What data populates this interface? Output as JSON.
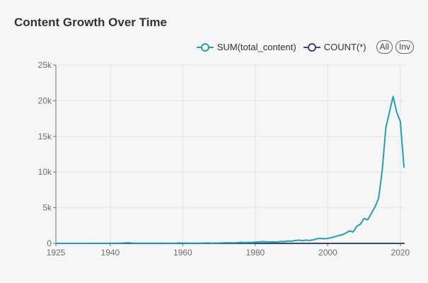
{
  "title": "Content Growth Over Time",
  "legend": {
    "items": [
      {
        "label": "SUM(total_content)",
        "color": "#1fa0b8"
      },
      {
        "label": "COUNT(*)",
        "color": "#3d4676"
      }
    ],
    "all_label": "All",
    "inv_label": "Inv"
  },
  "chart_data": {
    "type": "line",
    "xlim": [
      1925,
      2021
    ],
    "ylim": [
      0,
      25000
    ],
    "x_ticks": [
      1925,
      1940,
      1960,
      1980,
      2000,
      2020
    ],
    "y_ticks": [
      0,
      5000,
      10000,
      15000,
      20000,
      25000
    ],
    "y_tick_labels": [
      "0",
      "5k",
      "10k",
      "15k",
      "20k",
      "25k"
    ],
    "series": [
      {
        "name": "SUM(total_content)",
        "color": "#1fa0b8",
        "x": [
          1925,
          1930,
          1935,
          1940,
          1942,
          1943,
          1944,
          1945,
          1946,
          1947,
          1950,
          1955,
          1958,
          1959,
          1960,
          1962,
          1964,
          1966,
          1967,
          1968,
          1970,
          1972,
          1973,
          1974,
          1975,
          1976,
          1977,
          1978,
          1979,
          1980,
          1981,
          1982,
          1983,
          1984,
          1985,
          1986,
          1987,
          1988,
          1989,
          1990,
          1991,
          1992,
          1993,
          1994,
          1995,
          1996,
          1997,
          1998,
          1999,
          2000,
          2001,
          2002,
          2003,
          2004,
          2005,
          2006,
          2007,
          2008,
          2009,
          2010,
          2011,
          2012,
          2013,
          2014,
          2015,
          2016,
          2017,
          2018,
          2019,
          2020,
          2021
        ],
        "y": [
          0,
          0,
          0,
          10,
          30,
          30,
          60,
          90,
          40,
          20,
          20,
          20,
          10,
          60,
          40,
          20,
          20,
          40,
          60,
          30,
          50,
          90,
          90,
          70,
          100,
          150,
          110,
          150,
          130,
          180,
          210,
          250,
          220,
          200,
          210,
          190,
          270,
          250,
          330,
          300,
          400,
          450,
          400,
          460,
          410,
          500,
          650,
          700,
          650,
          700,
          800,
          950,
          1100,
          1200,
          1450,
          1750,
          1600,
          2400,
          2700,
          3500,
          3300,
          4200,
          5100,
          6300,
          10200,
          16200,
          18400,
          20600,
          18400,
          17100,
          10700
        ]
      },
      {
        "name": "COUNT(*)",
        "color": "#3d4676",
        "x": [
          1925,
          1940,
          1960,
          1980,
          1990,
          2000,
          2005,
          2010,
          2015,
          2018,
          2020,
          2021
        ],
        "y": [
          0,
          0,
          0,
          0,
          0,
          0,
          0,
          0,
          0,
          0,
          0,
          0
        ]
      }
    ]
  }
}
